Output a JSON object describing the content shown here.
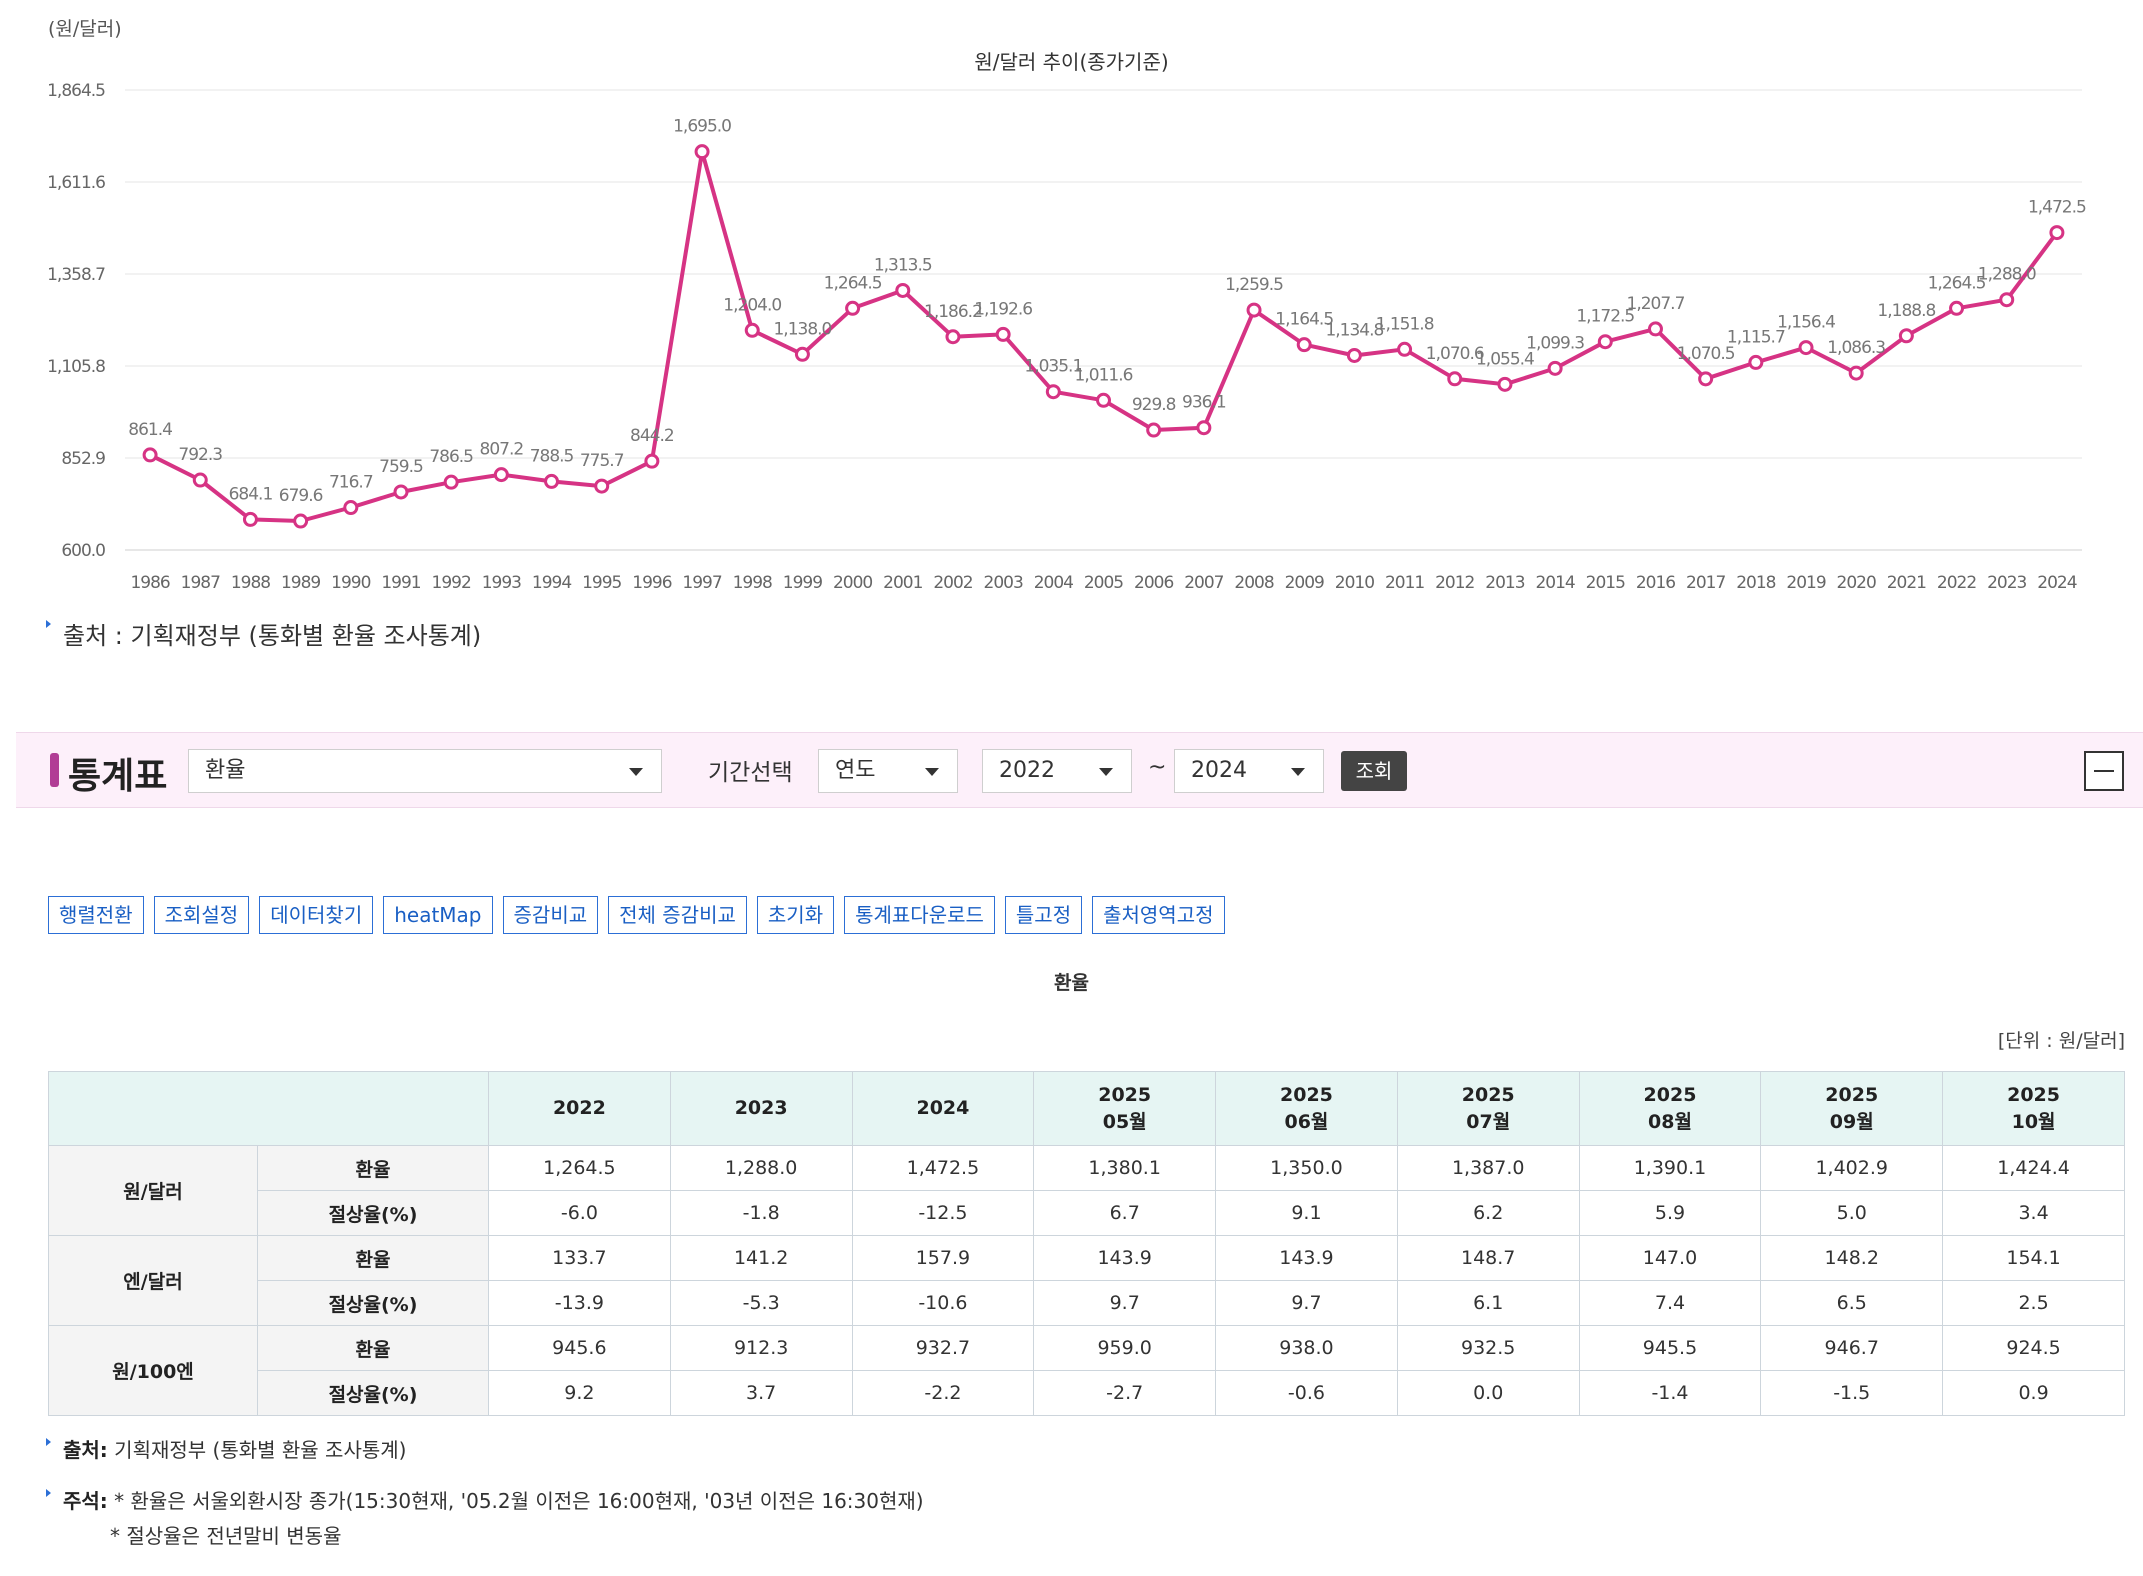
{
  "chart": {
    "unit": "(원/달러)",
    "title": "원/달러 추이(종가기준)",
    "source": "출처 : 기획재정부 (통화별 환율 조사통계)"
  },
  "chart_data": {
    "type": "line",
    "title": "원/달러 추이(종가기준)",
    "ylabel": "(원/달러)",
    "xlabel": "",
    "ylim": [
      600.0,
      1864.5
    ],
    "yticks": [
      "600.0",
      "852.9",
      "1,105.8",
      "1,358.7",
      "1,611.6",
      "1,864.5"
    ],
    "ytick_values": [
      600.0,
      852.9,
      1105.8,
      1358.7,
      1611.6,
      1864.5
    ],
    "grid": true,
    "color": "#d63384",
    "categories": [
      "1986",
      "1987",
      "1988",
      "1989",
      "1990",
      "1991",
      "1992",
      "1993",
      "1994",
      "1995",
      "1996",
      "1997",
      "1998",
      "1999",
      "2000",
      "2001",
      "2002",
      "2003",
      "2004",
      "2005",
      "2006",
      "2007",
      "2008",
      "2009",
      "2010",
      "2011",
      "2012",
      "2013",
      "2014",
      "2015",
      "2016",
      "2017",
      "2018",
      "2019",
      "2020",
      "2021",
      "2022",
      "2023",
      "2024"
    ],
    "values": [
      861.4,
      792.3,
      684.1,
      679.6,
      716.7,
      759.5,
      786.5,
      807.2,
      788.5,
      775.7,
      844.2,
      1695.0,
      1204.0,
      1138.0,
      1264.5,
      1313.5,
      1186.2,
      1192.6,
      1035.1,
      1011.6,
      929.8,
      936.1,
      1259.5,
      1164.5,
      1134.8,
      1151.8,
      1070.6,
      1055.4,
      1099.3,
      1172.5,
      1207.7,
      1070.5,
      1115.7,
      1156.4,
      1086.3,
      1188.8,
      1264.5,
      1288.0,
      1472.5
    ],
    "value_labels": [
      "861.4",
      "792.3",
      "684.1",
      "679.6",
      "716.7",
      "759.5",
      "786.5",
      "807.2",
      "788.5",
      "775.7",
      "844.2",
      "1,695.0",
      "1,204.0",
      "1,138.0",
      "1,264.5",
      "1,313.5",
      "1,186.2",
      "1,192.6",
      "1,035.1",
      "1,011.6",
      "929.8",
      "936.1",
      "1,259.5",
      "1,164.5",
      "1,134.8",
      "1,151.8",
      "1,070.6",
      "1,055.4",
      "1,099.3",
      "1,172.5",
      "1,207.7",
      "1,070.5",
      "1,115.7",
      "1,156.4",
      "1,086.3",
      "1,188.8",
      "1,264.5",
      "1,288.0",
      "1,472.5"
    ]
  },
  "statbar": {
    "title": "통계표",
    "item_select": "환율",
    "period_label": "기간선택",
    "period_type": "연도",
    "from": "2022",
    "tilde": "~",
    "to": "2024",
    "query": "조회"
  },
  "tools": [
    "행렬전환",
    "조회설정",
    "데이터찾기",
    "heatMap",
    "증감비교",
    "전체 증감비교",
    "초기화",
    "통계표다운로드",
    "틀고정",
    "출처영역고정"
  ],
  "table": {
    "caption": "환율",
    "unit": "[단위 : 원/달러]",
    "headers": [
      {
        "line1": "2022",
        "line2": ""
      },
      {
        "line1": "2023",
        "line2": ""
      },
      {
        "line1": "2024",
        "line2": ""
      },
      {
        "line1": "2025",
        "line2": "05월"
      },
      {
        "line1": "2025",
        "line2": "06월"
      },
      {
        "line1": "2025",
        "line2": "07월"
      },
      {
        "line1": "2025",
        "line2": "08월"
      },
      {
        "line1": "2025",
        "line2": "09월"
      },
      {
        "line1": "2025",
        "line2": "10월"
      }
    ],
    "groups": [
      {
        "name": "원/달러",
        "rows": [
          {
            "label": "환율",
            "values": [
              "1,264.5",
              "1,288.0",
              "1,472.5",
              "1,380.1",
              "1,350.0",
              "1,387.0",
              "1,390.1",
              "1,402.9",
              "1,424.4"
            ]
          },
          {
            "label": "절상율(%)",
            "values": [
              "-6.0",
              "-1.8",
              "-12.5",
              "6.7",
              "9.1",
              "6.2",
              "5.9",
              "5.0",
              "3.4"
            ]
          }
        ]
      },
      {
        "name": "엔/달러",
        "rows": [
          {
            "label": "환율",
            "values": [
              "133.7",
              "141.2",
              "157.9",
              "143.9",
              "143.9",
              "148.7",
              "147.0",
              "148.2",
              "154.1"
            ]
          },
          {
            "label": "절상율(%)",
            "values": [
              "-13.9",
              "-5.3",
              "-10.6",
              "9.7",
              "9.7",
              "6.1",
              "7.4",
              "6.5",
              "2.5"
            ]
          }
        ]
      },
      {
        "name": "원/100엔",
        "rows": [
          {
            "label": "환율",
            "values": [
              "945.6",
              "912.3",
              "932.7",
              "959.0",
              "938.0",
              "932.5",
              "945.5",
              "946.7",
              "924.5"
            ]
          },
          {
            "label": "절상율(%)",
            "values": [
              "9.2",
              "3.7",
              "-2.2",
              "-2.7",
              "-0.6",
              "0.0",
              "-1.4",
              "-1.5",
              "0.9"
            ]
          }
        ]
      }
    ]
  },
  "footer": {
    "source_label": "출처:",
    "source_text": " 기획재정부 (통화별 환율 조사통계)",
    "note_label": "주석:",
    "note_line1": " * 환율은 서울외환시장 종가(15:30현재, '05.2월 이전은 16:00현재, '03년 이전은 16:30현재)",
    "note_line2": "* 절상율은 전년말비 변동율"
  }
}
